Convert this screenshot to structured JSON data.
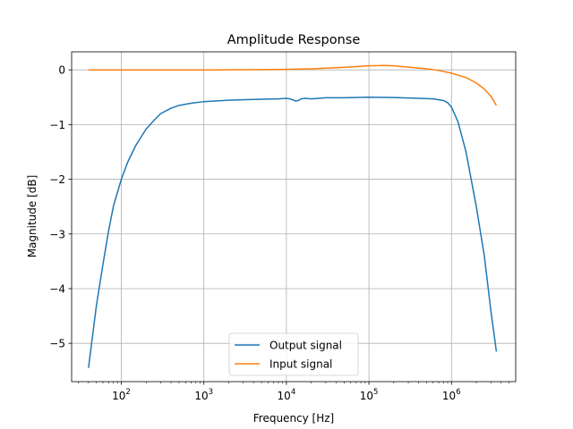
{
  "chart_data": {
    "type": "line",
    "title": "Amplitude Response",
    "xlabel": "Frequency [Hz]",
    "ylabel": "Magnitude [dB]",
    "xscale": "log",
    "xlim": [
      25,
      6000000
    ],
    "ylim": [
      -5.7,
      0.33
    ],
    "grid": true,
    "legend_position": "lower-center",
    "x_ticks": [
      {
        "value": 100,
        "base": "10",
        "exp": "2"
      },
      {
        "value": 1000,
        "base": "10",
        "exp": "3"
      },
      {
        "value": 10000,
        "base": "10",
        "exp": "4"
      },
      {
        "value": 100000,
        "base": "10",
        "exp": "5"
      },
      {
        "value": 1000000,
        "base": "10",
        "exp": "6"
      }
    ],
    "y_ticks": [
      {
        "value": 0,
        "label": "0"
      },
      {
        "value": -1,
        "label": "−1"
      },
      {
        "value": -2,
        "label": "−2"
      },
      {
        "value": -3,
        "label": "−3"
      },
      {
        "value": -4,
        "label": "−4"
      },
      {
        "value": -5,
        "label": "−5"
      }
    ],
    "series": [
      {
        "name": "Output signal",
        "color": "#1f77b4",
        "points": [
          [
            40,
            -5.45
          ],
          [
            50,
            -4.3
          ],
          [
            60,
            -3.55
          ],
          [
            70,
            -2.95
          ],
          [
            80,
            -2.5
          ],
          [
            100,
            -2.0
          ],
          [
            120,
            -1.68
          ],
          [
            150,
            -1.38
          ],
          [
            200,
            -1.08
          ],
          [
            250,
            -0.92
          ],
          [
            300,
            -0.8
          ],
          [
            400,
            -0.7
          ],
          [
            500,
            -0.65
          ],
          [
            700,
            -0.61
          ],
          [
            1000,
            -0.58
          ],
          [
            2000,
            -0.555
          ],
          [
            4000,
            -0.54
          ],
          [
            6000,
            -0.535
          ],
          [
            8000,
            -0.53
          ],
          [
            10000,
            -0.52
          ],
          [
            11000,
            -0.53
          ],
          [
            12000,
            -0.55
          ],
          [
            13000,
            -0.57
          ],
          [
            14000,
            -0.56
          ],
          [
            15000,
            -0.53
          ],
          [
            17000,
            -0.52
          ],
          [
            20000,
            -0.53
          ],
          [
            25000,
            -0.52
          ],
          [
            30000,
            -0.51
          ],
          [
            50000,
            -0.51
          ],
          [
            100000,
            -0.5
          ],
          [
            200000,
            -0.505
          ],
          [
            400000,
            -0.52
          ],
          [
            600000,
            -0.53
          ],
          [
            800000,
            -0.56
          ],
          [
            900000,
            -0.6
          ],
          [
            1000000,
            -0.68
          ],
          [
            1200000,
            -0.95
          ],
          [
            1500000,
            -1.5
          ],
          [
            2000000,
            -2.5
          ],
          [
            2500000,
            -3.4
          ],
          [
            3000000,
            -4.4
          ],
          [
            3500000,
            -5.15
          ]
        ]
      },
      {
        "name": "Input signal",
        "color": "#ff7f0e",
        "points": [
          [
            40,
            0.0
          ],
          [
            100,
            0.0
          ],
          [
            1000,
            0.0
          ],
          [
            5000,
            0.005
          ],
          [
            10000,
            0.01
          ],
          [
            20000,
            0.02
          ],
          [
            40000,
            0.04
          ],
          [
            70000,
            0.06
          ],
          [
            100000,
            0.075
          ],
          [
            150000,
            0.08
          ],
          [
            200000,
            0.075
          ],
          [
            300000,
            0.05
          ],
          [
            500000,
            0.02
          ],
          [
            700000,
            -0.01
          ],
          [
            1000000,
            -0.06
          ],
          [
            1500000,
            -0.14
          ],
          [
            2000000,
            -0.24
          ],
          [
            2500000,
            -0.35
          ],
          [
            3000000,
            -0.48
          ],
          [
            3500000,
            -0.65
          ]
        ]
      }
    ]
  }
}
